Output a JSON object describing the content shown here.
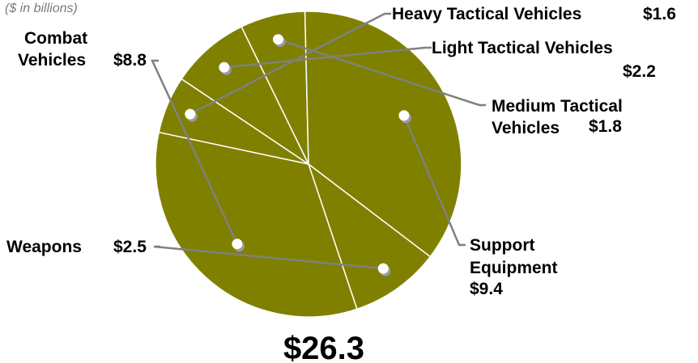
{
  "chart_data": {
    "type": "pie",
    "unit_note": "($ in billions)",
    "total": "$26.3",
    "colors": {
      "slice": "#808000",
      "separator": "#ffffff",
      "leader": "#808080",
      "marker": "#ffffff",
      "marker_shadow": "#9a9aa8"
    },
    "slices": [
      {
        "name": "Heavy Tactical Vehicles",
        "value": 1.6,
        "value_label": "$1.6"
      },
      {
        "name": "Light Tactical Vehicles",
        "value": 2.2,
        "value_label": "$2.2"
      },
      {
        "name": "Medium Tactical Vehicles",
        "value": 1.8,
        "value_label": "$1.8"
      },
      {
        "name": "Support Equipment",
        "value": 9.4,
        "value_label": "$9.4"
      },
      {
        "name": "Weapons",
        "value": 2.5,
        "value_label": "$2.5"
      },
      {
        "name": "Combat Vehicles",
        "value": 8.8,
        "value_label": "$8.8"
      }
    ]
  }
}
